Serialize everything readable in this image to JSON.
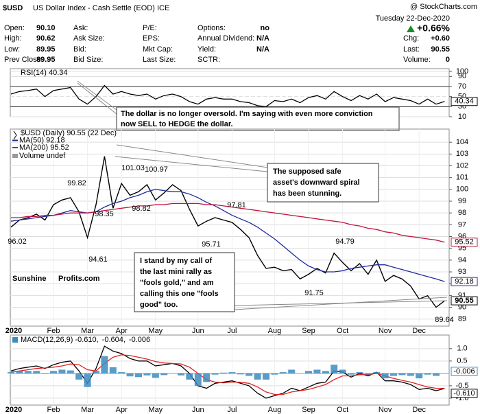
{
  "header": {
    "symbol": "$USD",
    "name": "US Dollar Index - Cash Settle (EOD) ICE",
    "source": "@ StockCharts.com",
    "date": "Tuesday 22-Dec-2020",
    "quote_left": [
      {
        "label": "Open:",
        "value": "90.10"
      },
      {
        "label": "High:",
        "value": "90.62"
      },
      {
        "label": "Low:",
        "value": "89.95"
      },
      {
        "label": "Prev Close:",
        "value": "89.95"
      }
    ],
    "quote_col2": [
      "Ask:",
      "Ask Size:",
      "Bid:",
      "Bid Size:"
    ],
    "quote_col3": [
      "P/E:",
      "EPS:",
      "Mkt Cap:",
      "Last Size:"
    ],
    "quote_col4": [
      {
        "label": "Options:",
        "value": "no"
      },
      {
        "label": "Annual Dividend:",
        "value": "N/A"
      },
      {
        "label": "Yield:",
        "value": "N/A"
      },
      {
        "label": "SCTR:"
      }
    ],
    "change_pct": "+0.66%",
    "quote_right": [
      {
        "label": "Chg:",
        "value": "+0.60"
      },
      {
        "label": "Last:",
        "value": "90.55"
      },
      {
        "label": "Volume:",
        "value": "0"
      }
    ]
  },
  "logo": [
    "Sunshine",
    "Profits.com"
  ],
  "chart_data": [
    {
      "type": "line",
      "title": "RSI(14) 40.34",
      "ylim": [
        10,
        100
      ],
      "yticks": [
        10,
        30,
        50,
        70,
        90,
        100
      ],
      "grid": true,
      "series": [
        {
          "color": "#000000",
          "values": [
            55,
            60,
            62,
            65,
            50,
            62,
            65,
            68,
            45,
            35,
            50,
            72,
            55,
            60,
            55,
            52,
            55,
            45,
            52,
            55,
            50,
            40,
            35,
            45,
            48,
            45,
            45,
            40,
            38,
            32,
            30,
            42,
            40,
            45,
            38,
            48,
            52,
            45,
            60,
            50,
            42,
            52,
            45,
            55,
            40,
            48,
            45,
            42,
            35,
            45,
            35,
            40.34
          ]
        }
      ],
      "annotations": [
        [
          "The dollar is no longer oversold. I'm saying with even more conviction",
          "now SELL to HEDGE the dollar."
        ]
      ]
    },
    {
      "type": "line",
      "title": "$USD (Daily) 90.55 (22 Dec)",
      "volume_label": "Volume undef",
      "categories": [
        "2020",
        null,
        null,
        null,
        null,
        "Feb",
        null,
        null,
        null,
        "Mar",
        null,
        null,
        null,
        "Apr",
        null,
        null,
        null,
        "May",
        null,
        null,
        null,
        null,
        "Jun",
        null,
        null,
        null,
        "Jul",
        null,
        null,
        null,
        null,
        "Aug",
        null,
        null,
        null,
        "Sep",
        null,
        null,
        null,
        "Oct",
        null,
        null,
        null,
        null,
        "Nov",
        null,
        null,
        null,
        "Dec",
        null,
        null,
        null
      ],
      "ylim": [
        88.4,
        105
      ],
      "yticks": [
        89,
        90,
        91,
        92,
        93,
        94,
        95,
        96,
        97,
        98,
        99,
        100,
        101,
        102,
        103,
        104
      ],
      "grid": true,
      "series": [
        {
          "color": "#000000",
          "values": [
            96.8,
            97.4,
            97.6,
            97.9,
            97.4,
            98.7,
            99.1,
            99.3,
            98.1,
            95.9,
            98.7,
            102.8,
            98.4,
            100.5,
            99.5,
            99.8,
            100.4,
            99.1,
            99.7,
            100.4,
            99.9,
            98.3,
            96.9,
            97.3,
            97.6,
            97.4,
            97.2,
            96.6,
            95.9,
            94.4,
            93.3,
            93.4,
            93.1,
            93.2,
            92.4,
            92.8,
            93.3,
            92.9,
            94.6,
            93.8,
            93.1,
            93.7,
            92.8,
            94.0,
            92.2,
            92.7,
            92.4,
            91.8,
            90.7,
            90.98,
            90.0,
            90.55
          ]
        },
        {
          "name": "MA(50) 92.18",
          "color": "#1f2a9c",
          "values": [
            97.3,
            97.4,
            97.5,
            97.6,
            97.7,
            97.8,
            98.0,
            98.2,
            98.1,
            98.0,
            98.1,
            98.5,
            98.8,
            99.0,
            99.3,
            99.5,
            99.8,
            100.0,
            99.9,
            99.8,
            99.8,
            99.6,
            99.3,
            98.9,
            98.6,
            98.2,
            97.8,
            97.5,
            97.2,
            96.8,
            96.3,
            95.8,
            95.2,
            94.6,
            94.0,
            93.5,
            93.2,
            93.0,
            93.0,
            93.1,
            93.3,
            93.4,
            93.5,
            93.6,
            93.6,
            93.4,
            93.2,
            93.0,
            92.8,
            92.6,
            92.4,
            92.18
          ]
        },
        {
          "name": "MA(200) 95.52",
          "color": "#c0143c",
          "values": [
            97.6,
            97.6,
            97.7,
            97.7,
            97.8,
            97.8,
            97.9,
            98.0,
            98.0,
            98.0,
            98.1,
            98.2,
            98.3,
            98.4,
            98.5,
            98.6,
            98.6,
            98.7,
            98.7,
            98.8,
            98.8,
            98.8,
            98.8,
            98.7,
            98.7,
            98.6,
            98.5,
            98.4,
            98.3,
            98.2,
            98.1,
            98.0,
            97.9,
            97.8,
            97.7,
            97.6,
            97.5,
            97.4,
            97.3,
            97.2,
            97.0,
            96.9,
            96.7,
            96.6,
            96.4,
            96.3,
            96.1,
            96.0,
            95.9,
            95.8,
            95.7,
            95.52
          ]
        }
      ],
      "point_labels": [
        101.03,
        100.97,
        99.82,
        98.82,
        98.35,
        97.81,
        96.02,
        94.61,
        95.71,
        94.79,
        91.75,
        89.64
      ],
      "annotations": [
        [
          "The supposed safe",
          "asset's downward spiral",
          "has been stunning."
        ],
        [
          "I stand by my call of",
          "the last mini rally as",
          "\"fools gold,\" and am",
          "calling this one \"fools",
          "good\" too."
        ]
      ]
    },
    {
      "type": "line",
      "categories": [
        "2020",
        null,
        null,
        null,
        null,
        "Feb",
        null,
        null,
        null,
        "Mar",
        null,
        null,
        null,
        "Apr",
        null,
        null,
        null,
        "May",
        null,
        null,
        null,
        null,
        "Jun",
        null,
        null,
        null,
        "Jul",
        null,
        null,
        null,
        null,
        "Aug",
        null,
        null,
        null,
        "Sep",
        null,
        null,
        null,
        "Oct",
        null,
        null,
        null,
        null,
        "Nov",
        null,
        null,
        null,
        "Dec",
        null,
        null,
        null
      ],
      "ylim": [
        -1.28,
        1.3
      ],
      "yticks": [
        {
          "value": -1,
          "label": "-1.0"
        },
        {
          "value": -0.5,
          "label": "-0.5"
        },
        {
          "value": 0.5,
          "label": "0.5"
        },
        {
          "value": 1,
          "label": "1.0"
        }
      ],
      "series": [
        {
          "name": "MACD(12,26,9) -0.610,",
          "color": "#000000",
          "values": [
            0.1,
            0.2,
            0.25,
            0.3,
            0.2,
            0.35,
            0.45,
            0.5,
            0.1,
            -0.4,
            0.2,
            1.1,
            0.9,
            0.8,
            0.6,
            0.5,
            0.5,
            0.3,
            0.35,
            0.4,
            0.3,
            0.0,
            -0.5,
            -0.6,
            -0.4,
            -0.35,
            -0.3,
            -0.4,
            -0.5,
            -0.8,
            -1.0,
            -0.9,
            -0.8,
            -0.6,
            -0.7,
            -0.55,
            -0.4,
            -0.35,
            0.1,
            0.05,
            -0.15,
            0.0,
            -0.1,
            0.05,
            -0.3,
            -0.3,
            -0.35,
            -0.45,
            -0.65,
            -0.6,
            -0.7,
            -0.61
          ],
          "value_labels": [
            null,
            null,
            null,
            null,
            null,
            null,
            null,
            null,
            null,
            null,
            null,
            null,
            null,
            null,
            null,
            null,
            null,
            null,
            null,
            null,
            null,
            null,
            null,
            null,
            null,
            null,
            null,
            null,
            null,
            null,
            null,
            null,
            null,
            null,
            null,
            null,
            null,
            null,
            null,
            null,
            null,
            null,
            null,
            null,
            null,
            null,
            null,
            null,
            null,
            null,
            null,
            "-0.610"
          ]
        },
        {
          "name": "-0.604,",
          "color": "#e02020",
          "values": [
            0.05,
            0.1,
            0.15,
            0.2,
            0.22,
            0.25,
            0.3,
            0.38,
            0.35,
            0.15,
            0.1,
            0.4,
            0.65,
            0.75,
            0.72,
            0.65,
            0.58,
            0.48,
            0.42,
            0.4,
            0.38,
            0.25,
            0.0,
            -0.25,
            -0.35,
            -0.38,
            -0.35,
            -0.36,
            -0.4,
            -0.55,
            -0.75,
            -0.85,
            -0.85,
            -0.75,
            -0.7,
            -0.65,
            -0.55,
            -0.45,
            -0.25,
            -0.1,
            -0.1,
            -0.05,
            -0.05,
            0.0,
            -0.1,
            -0.2,
            -0.28,
            -0.35,
            -0.45,
            -0.55,
            -0.6,
            -0.604
          ]
        },
        {
          "name": "-0.006",
          "color": "#3b8bbf",
          "kind": "histogram",
          "values": [
            0.05,
            0.1,
            0.1,
            0.1,
            -0.02,
            0.1,
            0.15,
            0.12,
            -0.25,
            -0.55,
            0.1,
            0.7,
            0.25,
            0.05,
            -0.12,
            -0.15,
            -0.08,
            -0.18,
            -0.07,
            0,
            -0.08,
            -0.25,
            -0.5,
            -0.35,
            -0.05,
            0.03,
            0.05,
            -0.04,
            -0.1,
            -0.25,
            -0.25,
            -0.05,
            0.05,
            0.15,
            0,
            0.1,
            0.15,
            0.1,
            0.35,
            0.15,
            -0.05,
            0.05,
            -0.05,
            0.05,
            -0.2,
            -0.1,
            -0.07,
            -0.1,
            -0.2,
            -0.05,
            -0.1,
            -0.006
          ]
        }
      ]
    }
  ]
}
